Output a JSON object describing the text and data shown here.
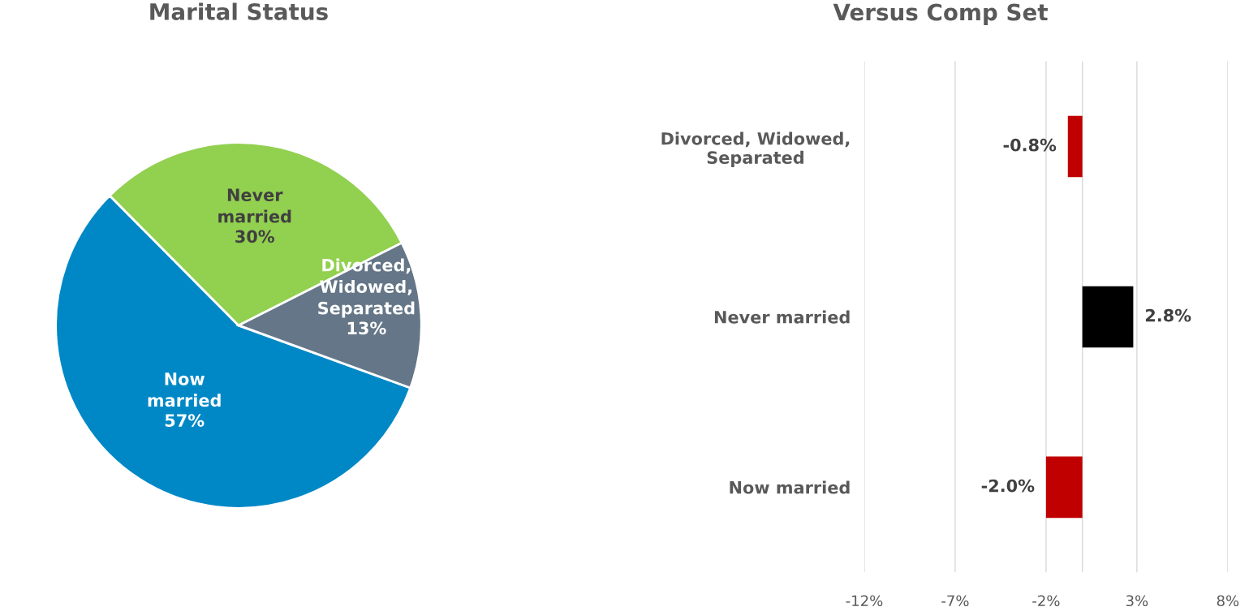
{
  "chart_data": [
    {
      "type": "pie",
      "title": "Marital Status",
      "categories": [
        "Now\nmarried",
        "Never\nmarried",
        "Divorced,\nWidowed,\nSeparated"
      ],
      "values": [
        57,
        30,
        13
      ],
      "colors": [
        "#0088c6",
        "#92d050",
        "#647687"
      ],
      "value_labels": [
        "57%",
        "30%",
        "13%"
      ]
    },
    {
      "type": "bar",
      "orientation": "horizontal",
      "title": "Versus Comp Set",
      "categories": [
        "Divorced, Widowed,\nSeparated",
        "Never married",
        "Now married"
      ],
      "values": [
        -0.8,
        2.8,
        -2.0
      ],
      "colors": [
        "#c00000",
        "#000000",
        "#c00000"
      ],
      "value_labels": [
        "-0.8%",
        "2.8%",
        "-2.0%"
      ],
      "xlim": [
        -12,
        8
      ],
      "xticks": [
        {
          "value": -12,
          "label": "-12%"
        },
        {
          "value": -7,
          "label": "-7%"
        },
        {
          "value": -2,
          "label": "-2%"
        },
        {
          "value": 3,
          "label": "3%"
        },
        {
          "value": 8,
          "label": "8%"
        }
      ],
      "grid": "x"
    }
  ]
}
